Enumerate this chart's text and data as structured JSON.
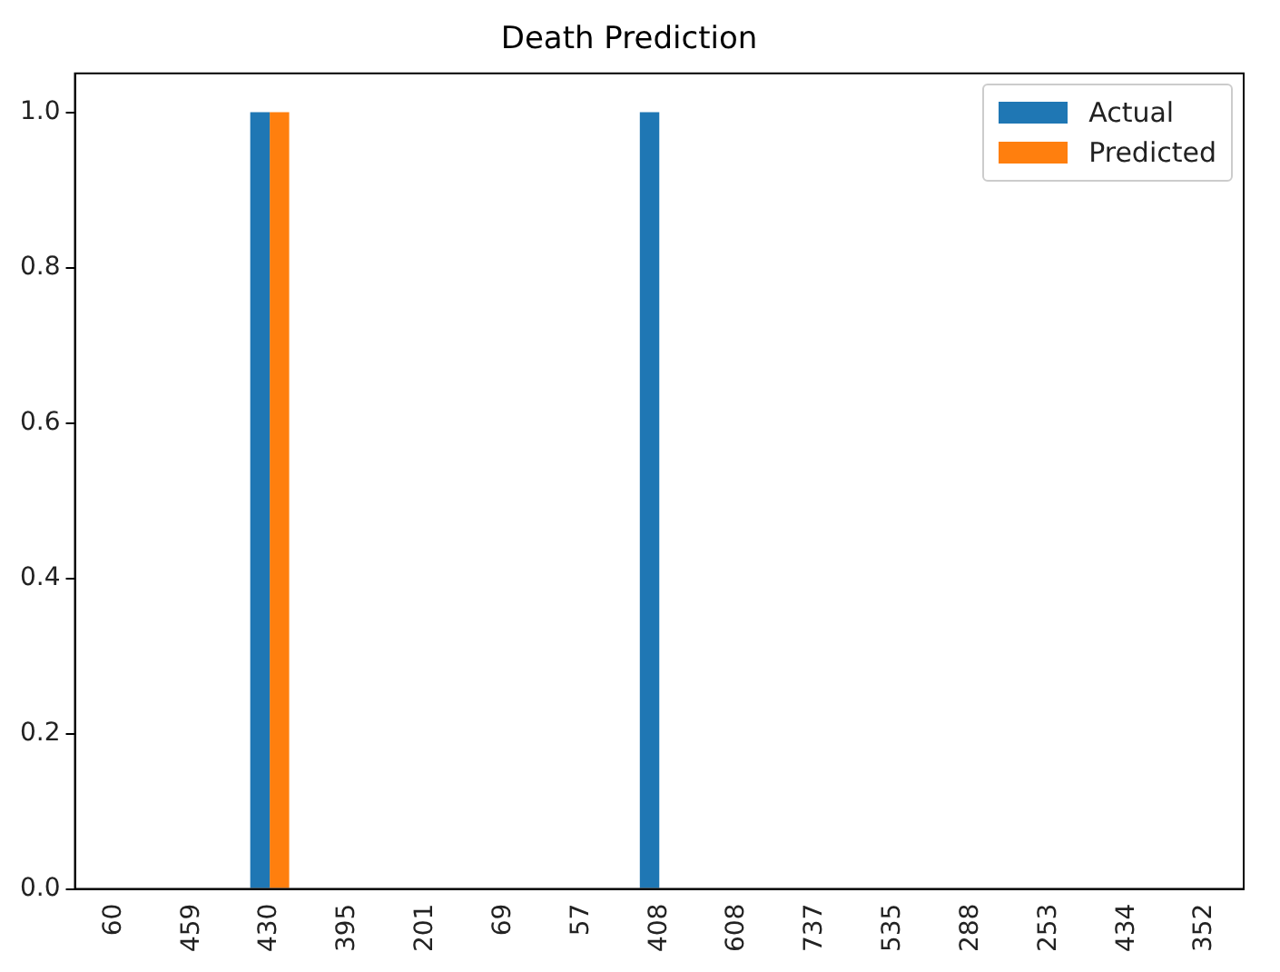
{
  "chart_data": {
    "type": "bar",
    "title": "Death Prediction",
    "categories": [
      "60",
      "459",
      "430",
      "395",
      "201",
      "69",
      "57",
      "408",
      "608",
      "737",
      "535",
      "288",
      "253",
      "434",
      "352"
    ],
    "series": [
      {
        "name": "Actual",
        "color": "#1f77b4",
        "values": [
          0,
          0,
          1,
          0,
          0,
          0,
          0,
          1,
          0,
          0,
          0,
          0,
          0,
          0,
          0
        ]
      },
      {
        "name": "Predicted",
        "color": "#ff7f0e",
        "values": [
          0,
          0,
          1,
          0,
          0,
          0,
          0,
          0,
          0,
          0,
          0,
          0,
          0,
          0,
          0
        ]
      }
    ],
    "ylim": [
      0,
      1.05
    ],
    "yticks": [
      {
        "value": 0,
        "label": "0.0"
      },
      {
        "value": 0.2,
        "label": "0.2"
      },
      {
        "value": 0.4,
        "label": "0.4"
      },
      {
        "value": 0.6,
        "label": "0.6"
      },
      {
        "value": 0.8,
        "label": "0.8"
      },
      {
        "value": 1,
        "label": "1.0"
      }
    ],
    "grid": false,
    "legend": "top right"
  }
}
